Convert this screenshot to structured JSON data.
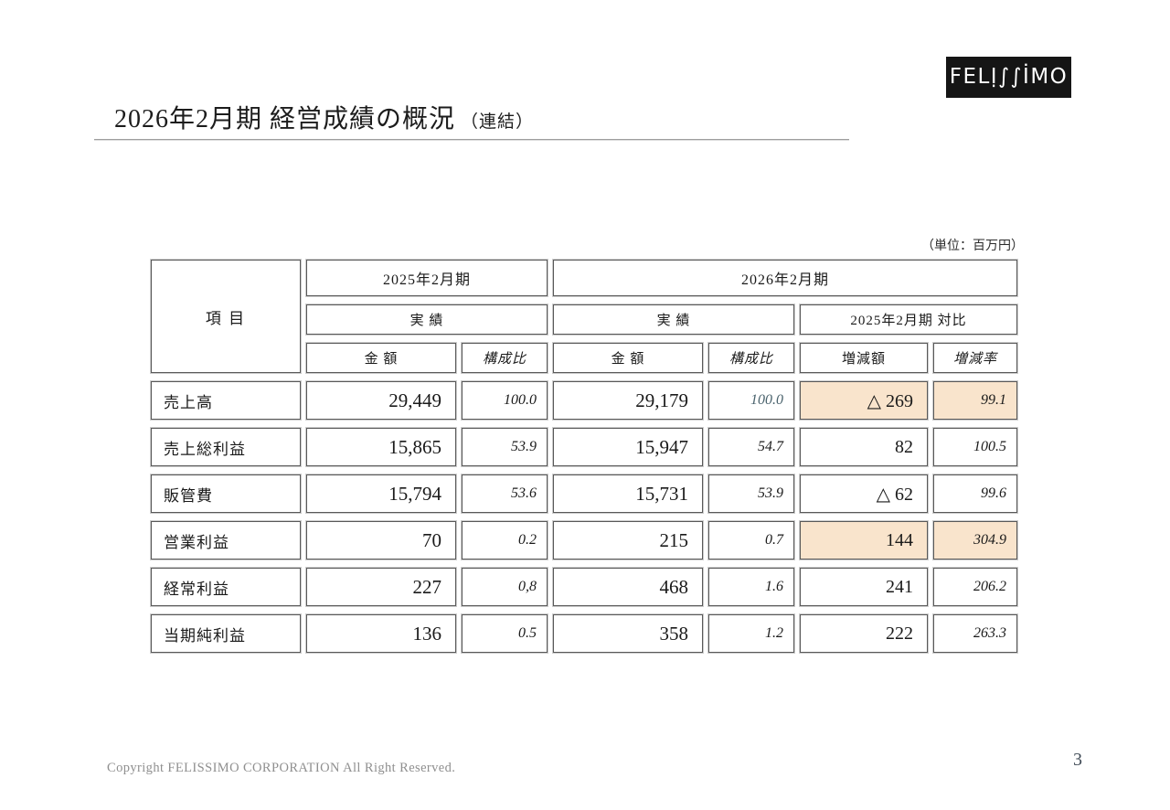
{
  "page": {
    "title": "2026年2月期 経営成績の概況",
    "title_suffix": "（連結）",
    "logo_text": "FELỊ∫∫İMO",
    "unit_note": "（単位：百万円）",
    "footer": "Copyright FELISSIMO CORPORATION All Right Reserved.",
    "page_number": "3"
  },
  "colors": {
    "highlight_cell": "#f9e4cc",
    "muted_value": "#4a636d",
    "cell_border": "#595959",
    "logo_background": "#151515"
  },
  "table": {
    "header": {
      "item": "項 目",
      "period_2025": "2025年2月期",
      "period_2026": "2026年2月期",
      "actual_2025": "実 績",
      "actual_2026": "実 績",
      "comparison": "2025年2月期 対比",
      "amount_label_2025": "金 額",
      "ratio_label_2025": "構成比",
      "amount_label_2026": "金 額",
      "ratio_label_2026": "構成比",
      "change_amount_label": "増減額",
      "change_ratio_label": "増減率"
    },
    "rows": [
      {
        "label": "売上高",
        "amount_2025": "29,449",
        "ratio_2025": "100.0",
        "amount_2026": "29,179",
        "ratio_2026": "100.0",
        "change_amount": "△ 269",
        "change_ratio": "99.1"
      },
      {
        "label": "売上総利益",
        "amount_2025": "15,865",
        "ratio_2025": "53.9",
        "amount_2026": "15,947",
        "ratio_2026": "54.7",
        "change_amount": "82",
        "change_ratio": "100.5"
      },
      {
        "label": "販管費",
        "amount_2025": "15,794",
        "ratio_2025": "53.6",
        "amount_2026": "15,731",
        "ratio_2026": "53.9",
        "change_amount": "△ 62",
        "change_ratio": "99.6"
      },
      {
        "label": "営業利益",
        "amount_2025": "70",
        "ratio_2025": "0.2",
        "amount_2026": "215",
        "ratio_2026": "0.7",
        "change_amount": "144",
        "change_ratio": "304.9"
      },
      {
        "label": "経常利益",
        "amount_2025": "227",
        "ratio_2025": "0,8",
        "amount_2026": "468",
        "ratio_2026": "1.6",
        "change_amount": "241",
        "change_ratio": "206.2"
      },
      {
        "label": "当期純利益",
        "amount_2025": "136",
        "ratio_2025": "0.5",
        "amount_2026": "358",
        "ratio_2026": "1.2",
        "change_amount": "222",
        "change_ratio": "263.3"
      }
    ]
  }
}
